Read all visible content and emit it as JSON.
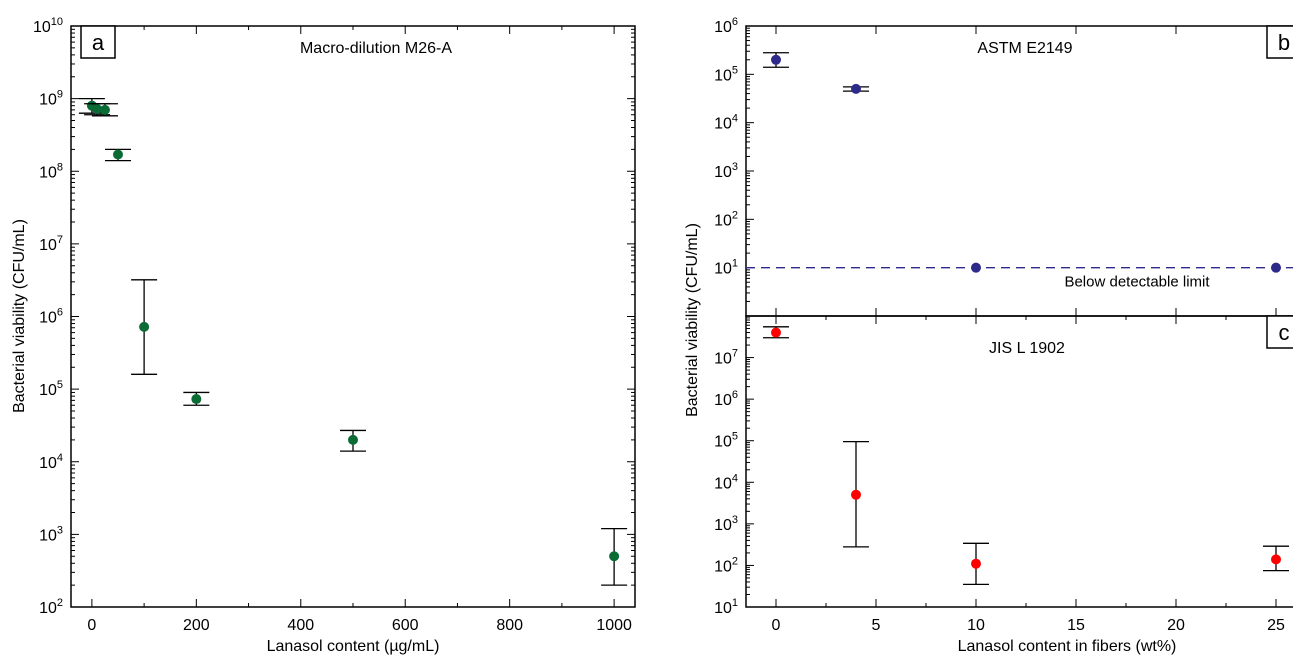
{
  "chart_data": [
    {
      "panel": "a",
      "type": "scatter",
      "title": "Macro-dilution M26-A",
      "xlabel": "Lanasol content (µg/mL)",
      "ylabel": "Bacterial viability (CFU/mL)",
      "xlim": [
        -40,
        1040
      ],
      "ylim": [
        100,
        10000000000
      ],
      "yscale": "log",
      "xticks": [
        0,
        200,
        400,
        600,
        800,
        1000
      ],
      "yticks": [
        2,
        3,
        4,
        5,
        6,
        7,
        8,
        9,
        10
      ],
      "color": "#0b6b35",
      "points": [
        {
          "x": 0,
          "y": 800000000,
          "err_low": 630000000,
          "err_high": 1000000000
        },
        {
          "x": 10,
          "y": 720000000,
          "err_low": 600000000,
          "err_high": 850000000
        },
        {
          "x": 25,
          "y": 700000000,
          "err_low": 580000000,
          "err_high": 850000000
        },
        {
          "x": 50,
          "y": 170000000,
          "err_low": 140000000,
          "err_high": 200000000
        },
        {
          "x": 100,
          "y": 720000,
          "err_low": 160000,
          "err_high": 3200000
        },
        {
          "x": 200,
          "y": 73000,
          "err_low": 60000,
          "err_high": 90000
        },
        {
          "x": 500,
          "y": 20000,
          "err_low": 14000,
          "err_high": 27000
        },
        {
          "x": 1000,
          "y": 500,
          "err_low": 200,
          "err_high": 1200
        }
      ]
    },
    {
      "panel": "b",
      "type": "scatter",
      "title": "ASTM E2149",
      "ylim": [
        1,
        1000000
      ],
      "yscale": "log",
      "yticks": [
        1,
        2,
        3,
        4,
        5,
        6
      ],
      "xlim": [
        -1.5,
        26.5
      ],
      "color": "#2e2a8a",
      "reference_line": {
        "y": 10,
        "label": "Below detectable limit",
        "color": "#2e2a8a"
      },
      "points": [
        {
          "x": 0,
          "y": 200000,
          "err_low": 140000,
          "err_high": 280000
        },
        {
          "x": 4,
          "y": 50000,
          "err_low": 45000,
          "err_high": 55000
        },
        {
          "x": 10,
          "y": 10
        },
        {
          "x": 25,
          "y": 10
        }
      ]
    },
    {
      "panel": "c",
      "type": "scatter",
      "title": "JIS L 1902",
      "xlabel": "Lanasol content in fibers (wt%)",
      "ylim": [
        10,
        100000000
      ],
      "yscale": "log",
      "yticks": [
        1,
        2,
        3,
        4,
        5,
        6,
        7
      ],
      "xlim": [
        -1.5,
        26.5
      ],
      "xticks": [
        0,
        5,
        10,
        15,
        20,
        25
      ],
      "color": "#ff0000",
      "points": [
        {
          "x": 0,
          "y": 40000000,
          "err_low": 30000000,
          "err_high": 55000000
        },
        {
          "x": 4,
          "y": 5000,
          "err_low": 280,
          "err_high": 95000
        },
        {
          "x": 10,
          "y": 110,
          "err_low": 35,
          "err_high": 340
        },
        {
          "x": 25,
          "y": 140,
          "err_low": 75,
          "err_high": 290
        }
      ]
    }
  ],
  "shared_ylabel_right": "Bacterial viability (CFU/mL)"
}
